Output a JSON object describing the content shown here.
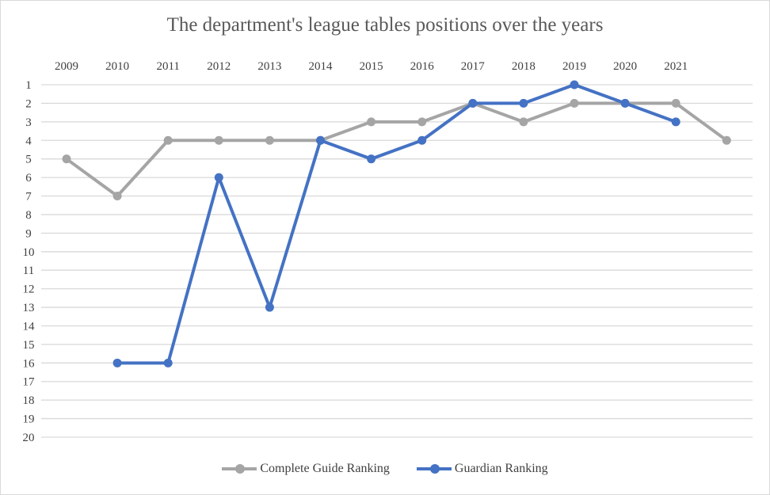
{
  "chart_data": {
    "type": "line",
    "title": "The department's league tables positions over the years",
    "categories": [
      "2009",
      "2010",
      "2011",
      "2012",
      "2013",
      "2014",
      "2015",
      "2016",
      "2017",
      "2018",
      "2019",
      "2020",
      "2021",
      ""
    ],
    "y_axis": {
      "reversed": true,
      "min": 1,
      "max": 20,
      "ticks": [
        1,
        2,
        3,
        4,
        5,
        6,
        7,
        8,
        9,
        10,
        11,
        12,
        13,
        14,
        15,
        16,
        17,
        18,
        19,
        20
      ]
    },
    "x_axis_position": "top",
    "grid": true,
    "legend": "bottom",
    "series": [
      {
        "name": "Complete Guide Ranking",
        "color": "#a5a5a5",
        "values": [
          5,
          7,
          4,
          4,
          4,
          4,
          3,
          3,
          2,
          3,
          2,
          2,
          2,
          4
        ]
      },
      {
        "name": "Guardian Ranking",
        "color": "#4472c4",
        "values": [
          null,
          16,
          16,
          6,
          13,
          4,
          5,
          4,
          2,
          2,
          1,
          2,
          3,
          null
        ]
      }
    ]
  }
}
